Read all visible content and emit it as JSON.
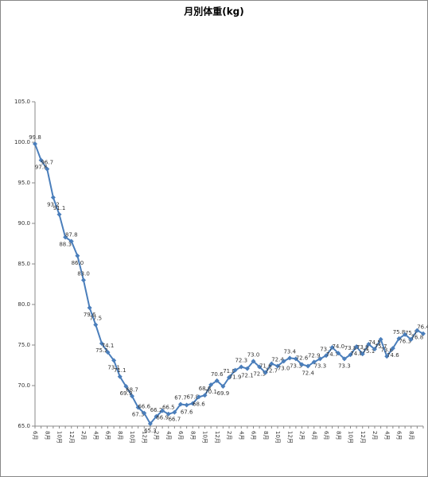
{
  "chart_data": {
    "type": "line",
    "title": "月別体重(kg)",
    "categories": [
      "6月",
      null,
      "8月",
      null,
      "10月",
      null,
      "12月",
      null,
      "2月",
      null,
      "4月",
      null,
      "6月",
      null,
      "8月",
      null,
      "10月",
      null,
      "12月",
      null,
      "2月",
      null,
      "4月",
      null,
      "6月",
      null,
      "8月",
      null,
      "10月",
      null,
      "12月",
      null,
      "2月",
      null,
      "4月",
      null,
      "6月",
      null,
      "8月",
      null,
      "10月",
      null,
      "12月",
      null,
      "2月",
      null,
      "4月",
      null,
      "6月",
      null,
      "8月",
      null,
      "10月",
      null,
      "12月",
      null,
      "2月",
      null,
      "4月",
      null,
      "6月",
      null,
      "8月",
      null,
      null
    ],
    "series": [
      {
        "name": "体重",
        "color": "#4a7ebb",
        "values": [
          99.8,
          97.8,
          96.7,
          93.2,
          91.1,
          88.3,
          87.8,
          86.0,
          83.0,
          79.6,
          77.5,
          75.2,
          74.1,
          73.1,
          71.1,
          69.9,
          68.7,
          67.3,
          66.6,
          65.3,
          66.2,
          66.9,
          66.5,
          66.7,
          67.7,
          67.6,
          67.8,
          68.6,
          68.8,
          70.1,
          70.6,
          69.9,
          71.0,
          71.9,
          72.3,
          72.1,
          73.0,
          72.3,
          71.6,
          72.7,
          72.4,
          73.0,
          73.4,
          73.3,
          72.6,
          72.4,
          72.9,
          73.3,
          73.7,
          74.7,
          74.0,
          73.3,
          73.8,
          74.8,
          73.9,
          75.1,
          74.5,
          75.7,
          73.6,
          74.6,
          75.8,
          76.3,
          75.7,
          76.8,
          76.4
        ],
        "value_labels": [
          "99.8",
          "97.8",
          "96.7",
          "93.2",
          "91.1",
          "88.3",
          "87.8",
          "86.0",
          "83.0",
          "79.6",
          "77.5",
          "75.2",
          "74.1",
          "73.1",
          "71.1",
          "69.9",
          "68.7",
          "67.3",
          "66.6",
          "65.3",
          "66.2",
          "66.9",
          "66.5",
          "66.7",
          "67.7",
          "67.6",
          "67.8",
          "68.6",
          "68.8",
          "70.1",
          "70.6",
          "69.9",
          "71.0",
          "71.9",
          "72.3",
          "72.1",
          "73.0",
          "72.3",
          "71.6",
          "72.7",
          "72.4",
          "73.0",
          "73.4",
          "73.3",
          "72.6",
          "72.4",
          "72.9",
          "73.3",
          "73.7",
          "74.7",
          "74.0",
          "73.3",
          "73.8",
          "74.8",
          "73.9",
          "75.1",
          "74.5",
          "75.7",
          "73.6",
          "74.6",
          "75.8",
          "76.3",
          "75.7",
          "76.8",
          "76.4"
        ]
      }
    ],
    "ylim": [
      65,
      105
    ],
    "yticks": [
      {
        "value": 65,
        "label": "65.0"
      },
      {
        "value": 70,
        "label": "70.0"
      },
      {
        "value": 75,
        "label": "75.0"
      },
      {
        "value": 80,
        "label": "80.0"
      },
      {
        "value": 85,
        "label": "85.0"
      },
      {
        "value": 90,
        "label": "90.0"
      },
      {
        "value": 95,
        "label": "95.0"
      },
      {
        "value": 100,
        "label": "100.0"
      },
      {
        "value": 105,
        "label": "105.0"
      }
    ],
    "grid": false
  }
}
